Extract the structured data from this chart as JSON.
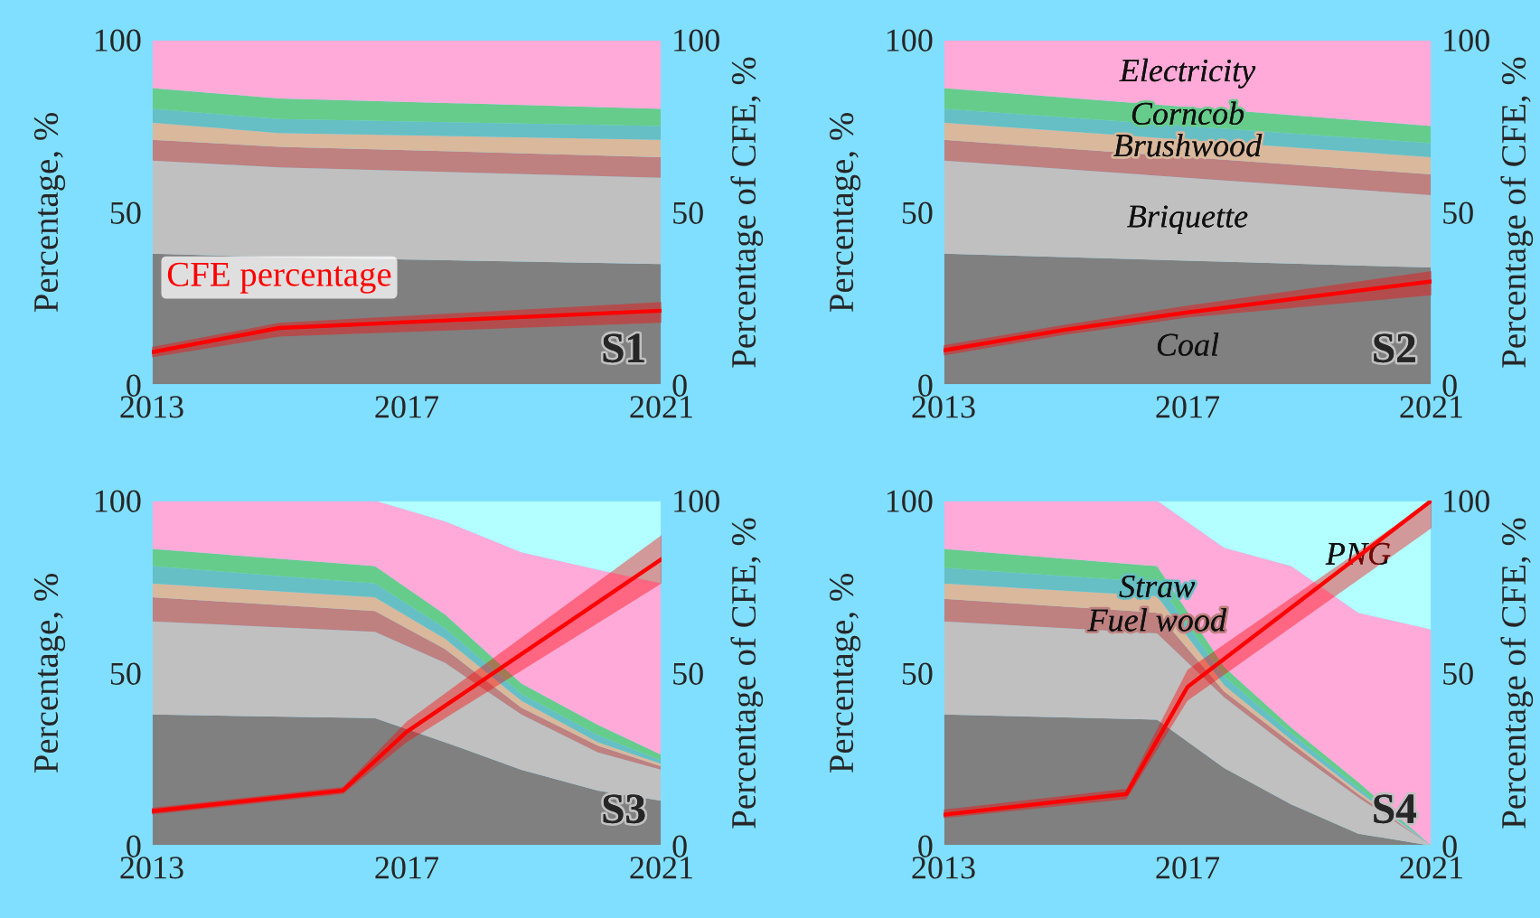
{
  "chart_data": [
    {
      "type": "area",
      "stacked": true,
      "title": "S1",
      "ylabel": "Percentage, %",
      "y2label": "Percentage of CFE, %",
      "x": [
        2013,
        2015,
        2021
      ],
      "xlim": [
        2013,
        2021
      ],
      "xticks": [
        2013,
        2017,
        2021
      ],
      "ylim": [
        0,
        100
      ],
      "yticks": [
        0,
        50,
        100
      ],
      "y2lim": [
        0,
        100
      ],
      "y2ticks": [
        0,
        50,
        100
      ],
      "series": [
        {
          "color": "#808080",
          "values": [
            38,
            37,
            35
          ]
        },
        {
          "color": "#c0c0c0",
          "values": [
            27,
            26,
            25
          ]
        },
        {
          "color": "#bf8080",
          "values": [
            6,
            6,
            6
          ]
        },
        {
          "color": "#d9b89c",
          "values": [
            5,
            4,
            5
          ]
        },
        {
          "color": "#66bfc4",
          "values": [
            4,
            4,
            4
          ]
        },
        {
          "color": "#66cc8c",
          "values": [
            6,
            6,
            5
          ]
        },
        {
          "color": "#ffaad8",
          "values": [
            14,
            17,
            20
          ]
        },
        {
          "type": "line",
          "axis": "y2",
          "name": "CFE percentage",
          "color": "#ff0000",
          "x": [
            2013,
            2015,
            2021
          ],
          "values": [
            9.5,
            16.5,
            21.5
          ],
          "lower": [
            8,
            14,
            18
          ],
          "upper": [
            11,
            18,
            24
          ]
        }
      ]
    },
    {
      "type": "area",
      "stacked": true,
      "title": "S2",
      "ylabel": "Percentage, %",
      "y2label": "Percentage of CFE, %",
      "x": [
        2013,
        2021
      ],
      "xlim": [
        2013,
        2021
      ],
      "xticks": [
        2013,
        2017,
        2021
      ],
      "ylim": [
        0,
        100
      ],
      "yticks": [
        0,
        50,
        100
      ],
      "y2lim": [
        0,
        100
      ],
      "y2ticks": [
        0,
        50,
        100
      ],
      "series": [
        {
          "name": "Coal",
          "color": "#808080",
          "values": [
            38,
            34
          ]
        },
        {
          "name": "Briquette",
          "color": "#c0c0c0",
          "values": [
            27,
            21
          ]
        },
        {
          "color": "#bf8080",
          "values": [
            6,
            6
          ]
        },
        {
          "name": "Brushwood",
          "color": "#d9b89c",
          "values": [
            5,
            5
          ]
        },
        {
          "color": "#66bfc4",
          "values": [
            4,
            4
          ]
        },
        {
          "name": "Corncob",
          "color": "#66cc8c",
          "values": [
            6,
            5
          ]
        },
        {
          "name": "Electricity",
          "color": "#ffaad8",
          "values": [
            14,
            25
          ]
        },
        {
          "type": "line",
          "axis": "y2",
          "color": "#ff0000",
          "x": [
            2013,
            2015,
            2017,
            2021
          ],
          "values": [
            10,
            16,
            21,
            30
          ],
          "lower": [
            8.5,
            14.5,
            19.5,
            26
          ],
          "upper": [
            11.5,
            17.5,
            23,
            33
          ]
        }
      ]
    },
    {
      "type": "area",
      "stacked": true,
      "title": "S3",
      "ylabel": "Percentage, %",
      "y2label": "Percentage of CFE, %",
      "x": [
        2013,
        2016.5,
        2017.6,
        2018.8,
        2020,
        2021
      ],
      "xlim": [
        2013,
        2021
      ],
      "xticks": [
        2013,
        2017,
        2021
      ],
      "ylim": [
        0,
        100
      ],
      "yticks": [
        0,
        50,
        100
      ],
      "y2lim": [
        0,
        100
      ],
      "y2ticks": [
        0,
        50,
        100
      ],
      "series": [
        {
          "color": "#808080",
          "values": [
            38,
            37,
            30,
            22,
            16,
            13
          ]
        },
        {
          "color": "#c0c0c0",
          "values": [
            27,
            25,
            23,
            16,
            11,
            9
          ]
        },
        {
          "color": "#bf8080",
          "values": [
            7,
            6,
            4,
            2,
            2,
            1
          ]
        },
        {
          "color": "#d9b89c",
          "values": [
            4,
            4,
            3,
            2,
            1,
            0.7
          ]
        },
        {
          "color": "#66bfc4",
          "values": [
            5,
            4,
            3,
            2,
            2,
            0.9
          ]
        },
        {
          "color": "#66cc8c",
          "values": [
            5,
            5,
            4,
            3,
            3,
            1.7
          ]
        },
        {
          "color": "#ffaad8",
          "values": [
            14,
            19,
            27,
            38,
            45,
            49.7
          ]
        },
        {
          "color": "#b3ffff",
          "values": [
            0,
            0,
            6,
            15,
            20,
            24
          ]
        },
        {
          "type": "line",
          "axis": "y2",
          "color": "#ff0000",
          "x": [
            2013,
            2016,
            2017,
            2021
          ],
          "values": [
            10,
            16,
            33,
            83
          ],
          "lower": [
            9,
            15,
            30,
            76
          ],
          "upper": [
            11,
            17,
            36,
            90
          ]
        }
      ]
    },
    {
      "type": "area",
      "stacked": true,
      "title": "S4",
      "ylabel": "Percentage, %",
      "y2label": "Percentage of CFE, %",
      "x": [
        2013,
        2016.5,
        2017.6,
        2018.7,
        2019.8,
        2021
      ],
      "xlim": [
        2013,
        2021
      ],
      "xticks": [
        2013,
        2017,
        2021
      ],
      "ylim": [
        0,
        100
      ],
      "yticks": [
        0,
        50,
        100
      ],
      "y2lim": [
        0,
        100
      ],
      "y2ticks": [
        0,
        50,
        100
      ],
      "series": [
        {
          "color": "#808080",
          "values": [
            38,
            36.5,
            22.5,
            12,
            3.5,
            0
          ]
        },
        {
          "color": "#c0c0c0",
          "values": [
            27,
            25,
            20.5,
            16,
            10.5,
            0
          ]
        },
        {
          "name": "Fuel wood",
          "color": "#bf8080",
          "values": [
            6.5,
            6,
            1.7,
            1.8,
            0.9,
            0
          ]
        },
        {
          "color": "#d9b89c",
          "values": [
            4.5,
            4.8,
            1.8,
            0.9,
            0.9,
            0
          ]
        },
        {
          "name": "Straw",
          "color": "#66bfc4",
          "values": [
            4.5,
            4,
            2.5,
            1.8,
            0.9,
            0
          ]
        },
        {
          "color": "#66cc8c",
          "values": [
            5.5,
            4.7,
            2.8,
            1.7,
            1.7,
            0
          ]
        },
        {
          "color": "#ffaad8",
          "values": [
            14,
            19,
            34.5,
            46.8,
            49.1,
            62.6
          ]
        },
        {
          "name": "PNG",
          "color": "#b3ffff",
          "values": [
            0,
            0,
            13.7,
            19,
            32.5,
            37.4
          ]
        },
        {
          "type": "line",
          "axis": "y2",
          "color": "#ff0000",
          "x": [
            2013,
            2016,
            2017,
            2021
          ],
          "values": [
            9,
            15,
            46,
            100
          ],
          "lower": [
            8,
            13.5,
            42,
            92
          ],
          "upper": [
            10.5,
            16.5,
            51,
            100
          ]
        }
      ]
    }
  ]
}
